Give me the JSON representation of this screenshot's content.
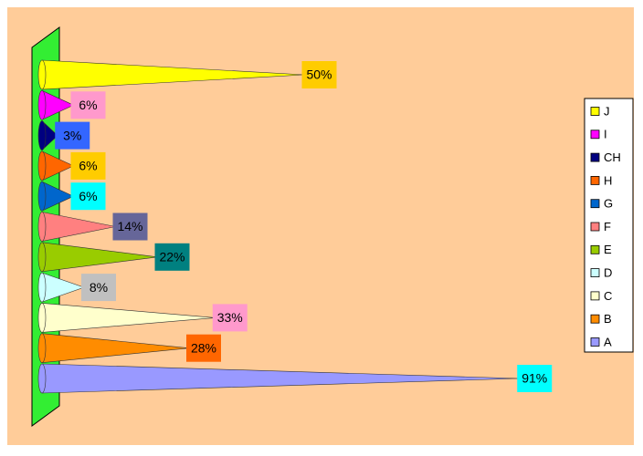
{
  "chart_data": {
    "type": "bar",
    "orientation": "horizontal",
    "shape": "cone",
    "categories": [
      "A",
      "B",
      "C",
      "D",
      "E",
      "F",
      "G",
      "H",
      "CH",
      "I",
      "J"
    ],
    "values": [
      91,
      28,
      33,
      8,
      22,
      14,
      6,
      6,
      3,
      6,
      50
    ],
    "value_labels": [
      "91%",
      "28%",
      "33%",
      "8%",
      "22%",
      "14%",
      "6%",
      "6%",
      "3%",
      "6%",
      "50%"
    ],
    "colors": [
      "#9999ff",
      "#ff8c00",
      "#ffffcc",
      "#ccffff",
      "#99cc00",
      "#ff8080",
      "#0066cc",
      "#ff6600",
      "#000080",
      "#ff00ff",
      "#ffff00"
    ],
    "label_colors": [
      "#00ffff",
      "#ff6600",
      "#ff99cc",
      "#c0c0c0",
      "#008080",
      "#666699",
      "#00ffff",
      "#ffcc00",
      "#3366ff",
      "#ff99cc",
      "#ffcc00"
    ],
    "legend": "right"
  }
}
